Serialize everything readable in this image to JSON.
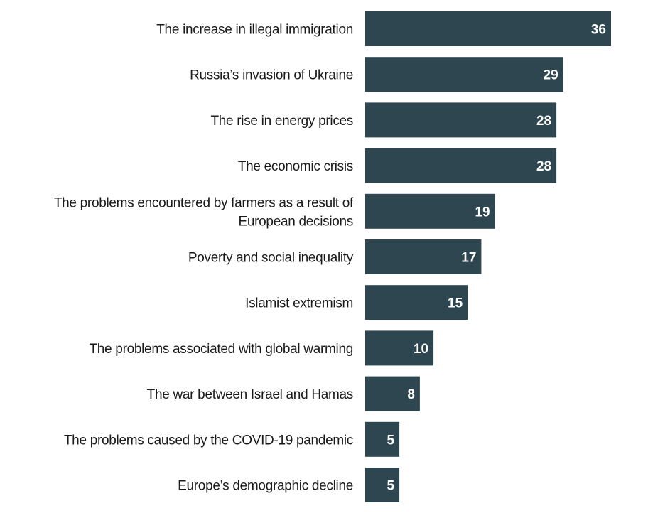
{
  "chart_data": {
    "type": "bar",
    "orientation": "horizontal",
    "title": "",
    "xlabel": "",
    "ylabel": "",
    "xlim": [
      0,
      36
    ],
    "grid": false,
    "legend": "none",
    "bar_color": "#2d4650",
    "value_label_color": "#ffffff",
    "categories": [
      [
        "The increase in illegal immigration"
      ],
      [
        "Russia’s invasion of Ukraine"
      ],
      [
        "The rise in energy prices"
      ],
      [
        "The economic crisis"
      ],
      [
        "The problems encountered by farmers as a result of",
        "European decisions"
      ],
      [
        "Poverty and social inequality"
      ],
      [
        "Islamist extremism"
      ],
      [
        "The problems associated with global warming"
      ],
      [
        "The war between Israel and Hamas"
      ],
      [
        "The problems caused by the COVID-19 pandemic"
      ],
      [
        "Europe’s demographic decline"
      ]
    ],
    "values": [
      36,
      29,
      28,
      28,
      19,
      17,
      15,
      10,
      8,
      5,
      5
    ]
  }
}
